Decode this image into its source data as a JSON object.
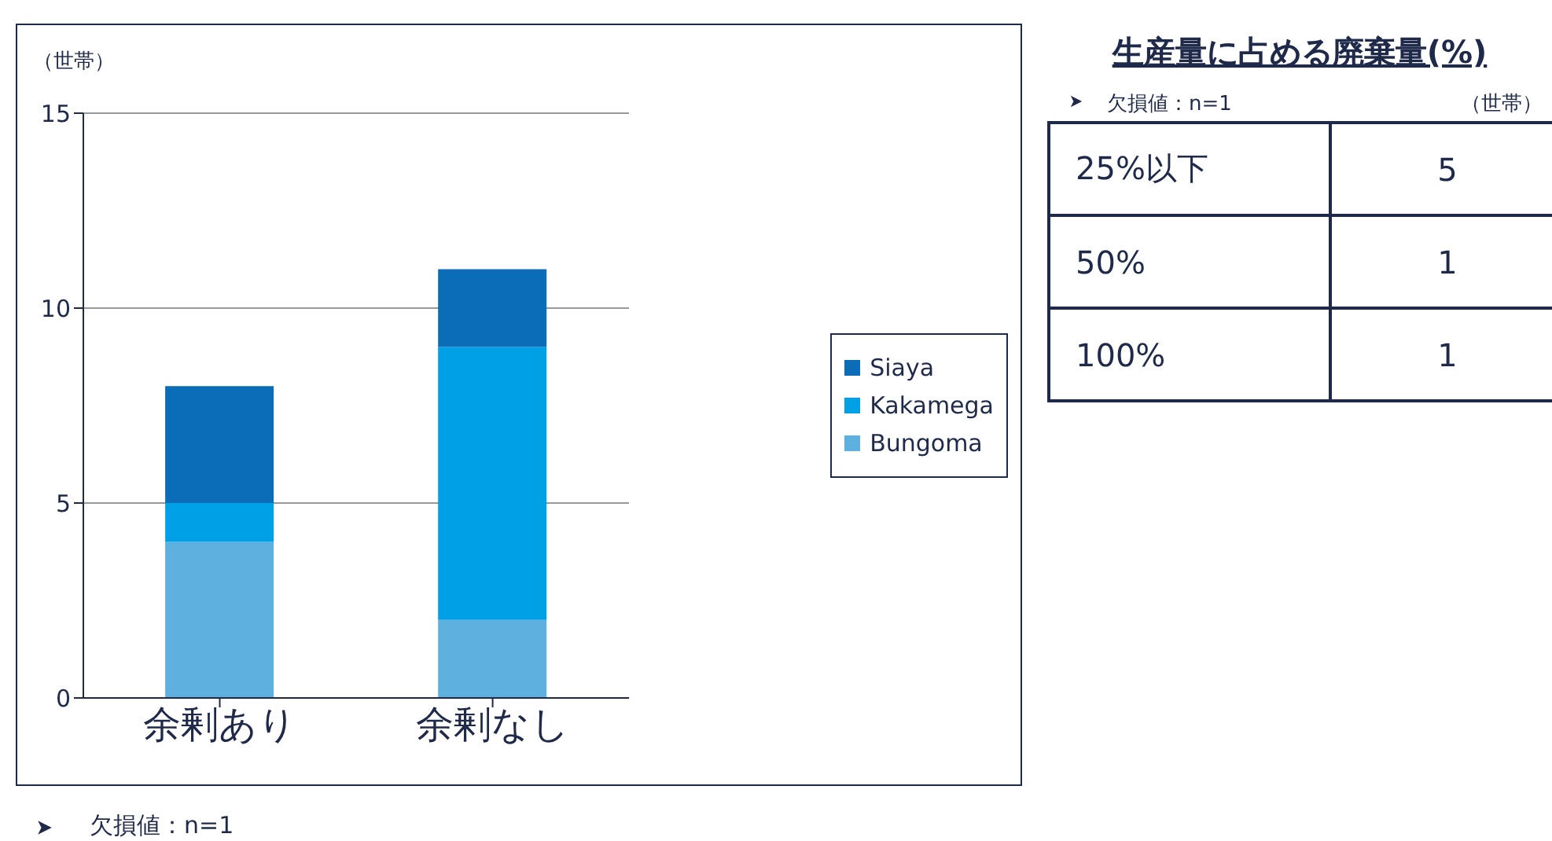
{
  "chart_data": [
    {
      "type": "bar",
      "ylabel": "（世帯）",
      "categories": [
        "余剰あり",
        "余剰なし"
      ],
      "stacked": true,
      "ylim": [
        0,
        15
      ],
      "yticks": [
        0,
        5,
        10,
        15
      ],
      "grid": "y",
      "legend": "right",
      "annotations": [
        "欠損値：n=1"
      ],
      "series": [
        {
          "name": "Bungoma",
          "color": "#5eb1de",
          "values": [
            4,
            2
          ]
        },
        {
          "name": "Kakamega",
          "color": "#00a0e6",
          "values": [
            1,
            7
          ]
        },
        {
          "name": "Siaya",
          "color": "#0b6db7",
          "values": [
            3,
            2
          ]
        }
      ]
    },
    {
      "type": "other",
      "title": "生産量に占める廃棄量(%)",
      "annotations": [
        "欠損値：n=1",
        "（世帯）"
      ],
      "categories": [
        "25%以下",
        "50%",
        "100%"
      ],
      "values": [
        5,
        1,
        1
      ],
      "data_labels": true
    }
  ]
}
